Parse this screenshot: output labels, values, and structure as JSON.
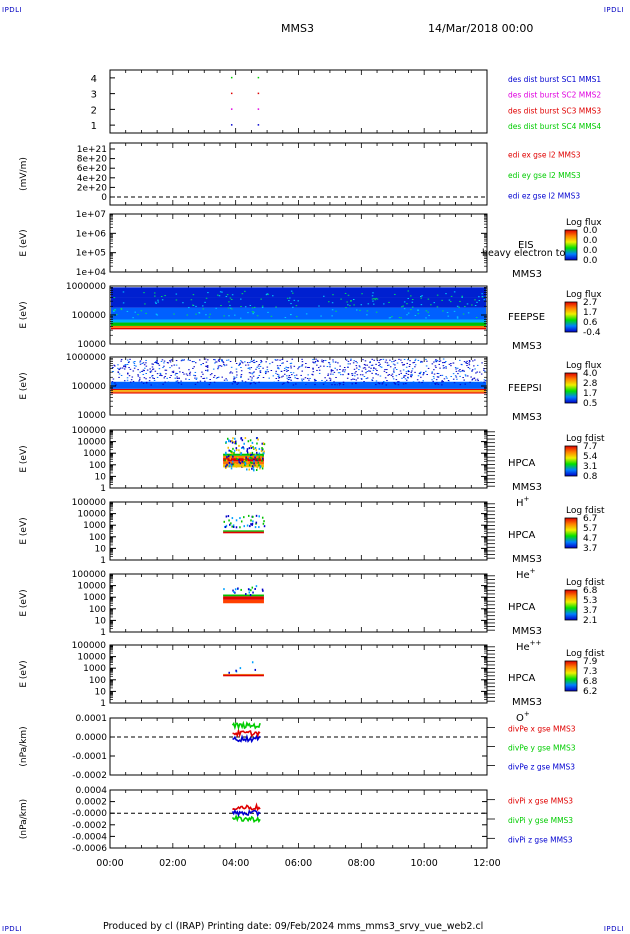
{
  "logo": {
    "text": "IPDLI"
  },
  "header": {
    "spacecraft": "MMS3",
    "datetime": "14/Mar/2018 00:00"
  },
  "footer": {
    "text": "Produced by cl (IRAP)   Printing date: 09/Feb/2024   mms_mms3_srvy_vue_web2.cl"
  },
  "time_axis": {
    "ticks": [
      "00:00",
      "02:00",
      "04:00",
      "06:00",
      "08:00",
      "10:00",
      "12:00"
    ],
    "range_hours": [
      0,
      12
    ]
  },
  "colors": {
    "red": "#e00000",
    "green": "#00cc00",
    "blue": "#0000d0",
    "magenta": "#e000e0",
    "black": "#000000"
  },
  "chart_data": [
    {
      "type": "scatter",
      "id": "burst",
      "ylim": [
        0.5,
        4.5
      ],
      "yticks": [
        "1",
        "2",
        "3",
        "4"
      ],
      "series": [
        {
          "name": "des dist burst SC1 MMS1",
          "color": "#0000d0",
          "y": 1,
          "x": [
            3.85,
            4.7
          ]
        },
        {
          "name": "des dist burst SC2 MMS2",
          "color": "#e000e0",
          "y": 2,
          "x": [
            3.85,
            4.7
          ]
        },
        {
          "name": "des dist burst SC3 MMS3",
          "color": "#e00000",
          "y": 3,
          "x": [
            3.85,
            4.7
          ]
        },
        {
          "name": "des dist burst SC4 MMS4",
          "color": "#00cc00",
          "y": 4,
          "x": [
            3.85,
            4.7
          ]
        }
      ]
    },
    {
      "type": "line",
      "id": "edi",
      "ylabel": "(mV/m)",
      "yticks": [
        "0",
        "2e+20",
        "4e+20",
        "6e+20",
        "8e+20",
        "1e+21"
      ],
      "series": [
        {
          "name": "edi ex gse l2 MMS3",
          "color": "#e00000"
        },
        {
          "name": "edi ey gse l2 MMS3",
          "color": "#00cc00"
        },
        {
          "name": "edi ez gse l2 MMS3",
          "color": "#0000d0"
        }
      ]
    },
    {
      "type": "heatmap",
      "id": "eis",
      "ylabel": "E (eV)",
      "yticks": [
        "1e+04",
        "1e+05",
        "1e+06",
        "1e+07"
      ],
      "instrument": [
        "EIS",
        "MMS3"
      ],
      "overlay": "heavy electron to",
      "colorbar": {
        "title": "Log flux",
        "ticks": [
          "0.0",
          "0.0",
          "0.0",
          "0.0"
        ]
      }
    },
    {
      "type": "heatmap",
      "id": "feepse",
      "ylabel": "E (eV)",
      "yticks": [
        "10000",
        "100000",
        "1000000"
      ],
      "instrument": [
        "FEEPSE",
        "MMS3"
      ],
      "colorbar": {
        "title": "Log flux",
        "ticks": [
          "2.7",
          "1.7",
          "0.6",
          "-0.4"
        ]
      }
    },
    {
      "type": "heatmap",
      "id": "feepsi",
      "ylabel": "E (eV)",
      "yticks": [
        "10000",
        "100000",
        "1000000"
      ],
      "instrument": [
        "FEEPSI",
        "MMS3"
      ],
      "colorbar": {
        "title": "Log flux",
        "ticks": [
          "4.0",
          "2.8",
          "1.7",
          "0.5"
        ]
      }
    },
    {
      "type": "heatmap",
      "id": "hpca_h",
      "ylabel": "E (eV)",
      "yticks": [
        "1",
        "10",
        "100",
        "1000",
        "10000",
        "100000"
      ],
      "instrument": [
        "HPCA",
        "MMS3"
      ],
      "species": "H",
      "species_sup": "+",
      "time_range": [
        3.6,
        4.9
      ],
      "colorbar": {
        "title": "Log fdist",
        "ticks": [
          "7.7",
          "5.4",
          "3.1",
          "0.8"
        ]
      }
    },
    {
      "type": "heatmap",
      "id": "hpca_he",
      "ylabel": "E (eV)",
      "yticks": [
        "1",
        "10",
        "100",
        "1000",
        "10000",
        "100000"
      ],
      "instrument": [
        "HPCA",
        "MMS3"
      ],
      "species": "He",
      "species_sup": "+",
      "time_range": [
        3.6,
        4.9
      ],
      "colorbar": {
        "title": "Log fdist",
        "ticks": [
          "6.7",
          "5.7",
          "4.7",
          "3.7"
        ]
      }
    },
    {
      "type": "heatmap",
      "id": "hpca_hepp",
      "ylabel": "E (eV)",
      "yticks": [
        "1",
        "10",
        "100",
        "1000",
        "10000",
        "100000"
      ],
      "instrument": [
        "HPCA",
        "MMS3"
      ],
      "species": "He",
      "species_sup": "++",
      "time_range": [
        3.6,
        4.9
      ],
      "colorbar": {
        "title": "Log fdist",
        "ticks": [
          "6.8",
          "5.3",
          "3.7",
          "2.1"
        ]
      }
    },
    {
      "type": "heatmap",
      "id": "hpca_o",
      "ylabel": "E (eV)",
      "yticks": [
        "1",
        "10",
        "100",
        "1000",
        "10000",
        "100000"
      ],
      "instrument": [
        "HPCA",
        "MMS3"
      ],
      "species": "O",
      "species_sup": "+",
      "time_range": [
        3.6,
        4.9
      ],
      "colorbar": {
        "title": "Log fdist",
        "ticks": [
          "7.9",
          "7.3",
          "6.8",
          "6.2"
        ]
      }
    },
    {
      "type": "line",
      "id": "divpe",
      "ylabel": "(nPa/km)",
      "ylim": [
        -0.0002,
        0.0001
      ],
      "yticks": [
        "-0.0002",
        "-0.0001",
        "0.0000",
        "0.0001"
      ],
      "time_range": [
        3.9,
        4.8
      ],
      "series": [
        {
          "name": "divPe x gse MMS3",
          "color": "#e00000",
          "level": 2e-05
        },
        {
          "name": "divPe y gse MMS3",
          "color": "#00cc00",
          "level": 6e-05
        },
        {
          "name": "divPe z gse MMS3",
          "color": "#0000d0",
          "level": -1e-05
        }
      ]
    },
    {
      "type": "line",
      "id": "divpi",
      "ylabel": "(nPa/km)",
      "ylim": [
        -0.0006,
        0.0004
      ],
      "yticks": [
        "-0.0006",
        "-0.0004",
        "-0.0002",
        "-0.0000",
        "0.0002",
        "0.0004"
      ],
      "time_range": [
        3.9,
        4.8
      ],
      "series": [
        {
          "name": "divPi x gse MMS3",
          "color": "#e00000",
          "level": 0.0001
        },
        {
          "name": "divPi y gse MMS3",
          "color": "#00cc00",
          "level": -0.0001
        },
        {
          "name": "divPi z gse MMS3",
          "color": "#0000d0",
          "level": 0.0
        }
      ]
    }
  ]
}
